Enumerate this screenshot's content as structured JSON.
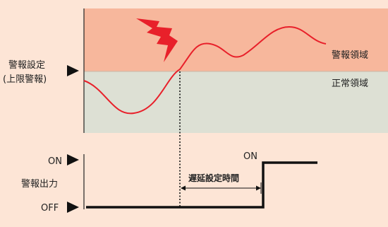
{
  "upper_chart": {
    "setpoint_label_line1": "警報設定",
    "setpoint_label_line2": "(上限警報)",
    "alarm_zone_label": "警報領域",
    "normal_zone_label": "正常領域",
    "alarm_zone_color": "#f7b79c",
    "normal_zone_color": "#dde0d4",
    "process_line_color": "#e8202a",
    "lightning_color": "#e8202a",
    "icon": "lightning-bolt-icon"
  },
  "lower_chart": {
    "output_label": "警報出力",
    "on_label": "ON",
    "off_label": "OFF",
    "on_tag_label": "ON",
    "delay_label": "遅延設定時間",
    "output_line_color": "#111111"
  }
}
